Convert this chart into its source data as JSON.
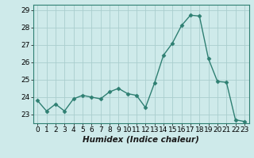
{
  "x": [
    0,
    1,
    2,
    3,
    4,
    5,
    6,
    7,
    8,
    9,
    10,
    11,
    12,
    13,
    14,
    15,
    16,
    17,
    18,
    19,
    20,
    21,
    22,
    23
  ],
  "y": [
    23.8,
    23.2,
    23.6,
    23.2,
    23.9,
    24.1,
    24.0,
    23.9,
    24.3,
    24.5,
    24.2,
    24.1,
    23.4,
    24.8,
    26.4,
    27.1,
    28.1,
    28.7,
    28.65,
    26.2,
    24.9,
    24.85,
    22.7,
    22.6
  ],
  "line_color": "#2e7f72",
  "marker": "D",
  "marker_size": 2.5,
  "bg_color": "#ceeaea",
  "grid_color": "#aacece",
  "xlabel": "Humidex (Indice chaleur)",
  "xlim": [
    -0.5,
    23.5
  ],
  "ylim": [
    22.5,
    29.3
  ],
  "yticks": [
    23,
    24,
    25,
    26,
    27,
    28,
    29
  ],
  "xticks": [
    0,
    1,
    2,
    3,
    4,
    5,
    6,
    7,
    8,
    9,
    10,
    11,
    12,
    13,
    14,
    15,
    16,
    17,
    18,
    19,
    20,
    21,
    22,
    23
  ],
  "xlabel_fontsize": 7.5,
  "tick_fontsize": 6.5,
  "line_width": 1.0
}
